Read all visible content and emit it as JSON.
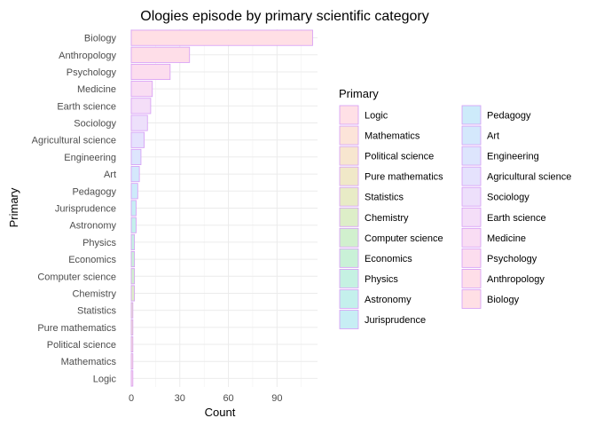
{
  "chart_data": {
    "type": "bar",
    "orientation": "horizontal",
    "title": "Ologies episode by primary scientific category",
    "xlabel": "Count",
    "ylabel": "Primary",
    "categories": [
      "Logic",
      "Mathematics",
      "Political science",
      "Pure mathematics",
      "Statistics",
      "Chemistry",
      "Computer science",
      "Economics",
      "Physics",
      "Astronomy",
      "Jurisprudence",
      "Pedagogy",
      "Art",
      "Engineering",
      "Agricultural science",
      "Sociology",
      "Earth science",
      "Medicine",
      "Psychology",
      "Anthropology",
      "Biology"
    ],
    "values": [
      1,
      1,
      1,
      1,
      1,
      2,
      2,
      2,
      2,
      3,
      3,
      4,
      5,
      6,
      8,
      10,
      12,
      13,
      24,
      36,
      112
    ],
    "xlim": [
      0,
      115
    ],
    "xticks": [
      0,
      30,
      60,
      90
    ],
    "grid": true,
    "legend": {
      "title": "Primary",
      "placement": "right",
      "columns": 2,
      "items": [
        "Logic",
        "Mathematics",
        "Political science",
        "Pure mathematics",
        "Statistics",
        "Chemistry",
        "Computer science",
        "Economics",
        "Physics",
        "Astronomy",
        "Jurisprudence",
        "Pedagogy",
        "Art",
        "Engineering",
        "Agricultural science",
        "Sociology",
        "Earth science",
        "Medicine",
        "Psychology",
        "Anthropology",
        "Biology"
      ]
    },
    "colors": [
      "#FFE0E6",
      "#FCE4D9",
      "#F7E6CF",
      "#F0E8C8",
      "#E8EBC6",
      "#DDEEC8",
      "#D1F0CE",
      "#C9F1D7",
      "#C5F1E2",
      "#C4F0EC",
      "#C7EEF4",
      "#CDEBFA",
      "#D4E8FC",
      "#DDE5FD",
      "#E5E2FD",
      "#EDE0FB",
      "#F4DEF8",
      "#F9DDF3",
      "#FCDDEE",
      "#FEDEE8",
      "#FFDFE5"
    ],
    "bar_stroke": "#D69CF5"
  }
}
